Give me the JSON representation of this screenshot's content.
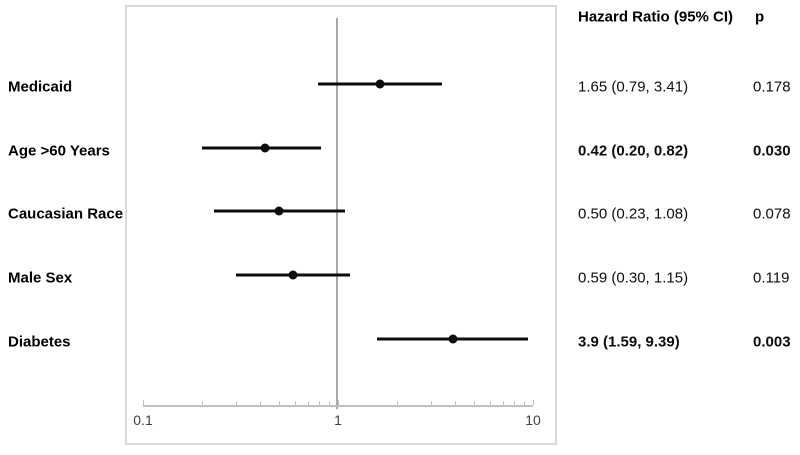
{
  "chart_data": {
    "type": "forest",
    "title": "",
    "xaxis": {
      "scale": "log",
      "min": 0.1,
      "max": 10,
      "major_ticks": [
        0.1,
        1,
        10
      ],
      "major_tick_labels": [
        "0.1",
        "1",
        "10"
      ],
      "minor_ticks": [
        0.2,
        0.3,
        0.4,
        0.5,
        0.6,
        0.7,
        0.8,
        0.9,
        2,
        3,
        4,
        5,
        6,
        7,
        8,
        9
      ],
      "reference_line_value": 1
    },
    "columns": {
      "hr_header": "Hazard Ratio (95% CI)",
      "p_header": "p"
    },
    "rows": [
      {
        "label": "Medicaid",
        "hr": 1.65,
        "ci_low": 0.79,
        "ci_high": 3.41,
        "hr_text": "1.65 (0.79, 3.41)",
        "p_text": "0.178",
        "bold": false
      },
      {
        "label": "Age >60 Years",
        "hr": 0.42,
        "ci_low": 0.2,
        "ci_high": 0.82,
        "hr_text": "0.42 (0.20, 0.82)",
        "p_text": "0.030",
        "bold": true
      },
      {
        "label": "Caucasian Race",
        "hr": 0.5,
        "ci_low": 0.23,
        "ci_high": 1.08,
        "hr_text": "0.50 (0.23, 1.08)",
        "p_text": "0.078",
        "bold": false
      },
      {
        "label": "Male Sex",
        "hr": 0.59,
        "ci_low": 0.3,
        "ci_high": 1.15,
        "hr_text": "0.59 (0.30, 1.15)",
        "p_text": "0.119",
        "bold": false
      },
      {
        "label": "Diabetes",
        "hr": 3.9,
        "ci_low": 1.59,
        "ci_high": 9.39,
        "hr_text": "3.9 (1.59, 9.39)",
        "p_text": "0.003",
        "bold": true
      }
    ],
    "colors": {
      "marker": "#0d0d0d",
      "frame_border": "#d9d9d9",
      "axis": "#bfbfbf",
      "reference_line": "#a8a8a8",
      "tick_label": "#404040",
      "text": "#000000"
    }
  }
}
